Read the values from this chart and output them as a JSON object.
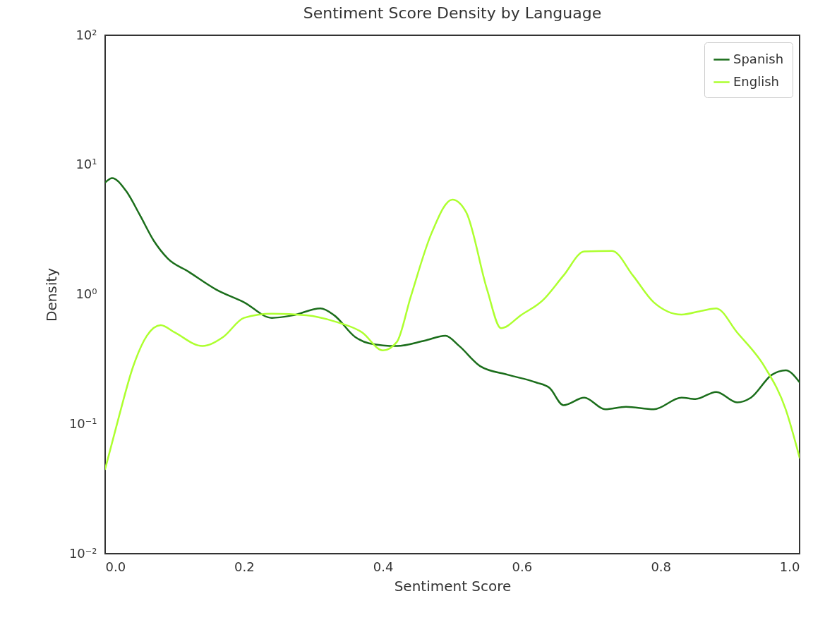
{
  "chart_data": {
    "type": "line",
    "title": "Sentiment Score Density by Language",
    "xlabel": "Sentiment Score",
    "ylabel": "Density",
    "log": "y",
    "grid": false,
    "legend": "top right",
    "marker": "none",
    "line_style": "solid",
    "xlim": [
      0,
      1
    ],
    "xticks": [
      {
        "value": 0,
        "label": "0.0"
      },
      0.2,
      0.4,
      0.6,
      0.8,
      {
        "value": 1,
        "label": "1.0"
      }
    ],
    "ylim": [
      0.01,
      100
    ],
    "yticks": [
      {
        "value": 0.01,
        "label": "10⁻²"
      },
      {
        "value": 0.1,
        "label": "10⁻¹"
      },
      {
        "value": 1,
        "label": "10⁰"
      },
      {
        "value": 10,
        "label": "10¹"
      },
      {
        "value": 100,
        "label": "10²"
      }
    ],
    "series": [
      {
        "name": "Spanish",
        "color": "#1b6e1b",
        "x": [
          0,
          0.01,
          0.03,
          0.05,
          0.07,
          0.09,
          0.12,
          0.16,
          0.2,
          0.24,
          0.27,
          0.31,
          0.33,
          0.36,
          0.38,
          0.42,
          0.46,
          0.49,
          0.51,
          0.54,
          0.58,
          0.62,
          0.64,
          0.66,
          0.69,
          0.72,
          0.75,
          0.79,
          0.83,
          0.85,
          0.88,
          0.91,
          0.93,
          0.96,
          0.98,
          1
        ],
        "values": [
          7.3,
          7.9,
          6.3,
          4.1,
          2.6,
          1.9,
          1.5,
          1.09,
          0.87,
          0.66,
          0.69,
          0.78,
          0.69,
          0.47,
          0.42,
          0.4,
          0.44,
          0.48,
          0.4,
          0.28,
          0.24,
          0.21,
          0.19,
          0.14,
          0.16,
          0.13,
          0.136,
          0.13,
          0.16,
          0.156,
          0.177,
          0.147,
          0.16,
          0.24,
          0.26,
          0.21
        ]
      },
      {
        "name": "English",
        "color": "#adff2f",
        "x": [
          0,
          0.02,
          0.04,
          0.06,
          0.08,
          0.1,
          0.14,
          0.17,
          0.2,
          0.24,
          0.29,
          0.33,
          0.37,
          0.4,
          0.42,
          0.44,
          0.47,
          0.5,
          0.52,
          0.55,
          0.57,
          0.6,
          0.63,
          0.66,
          0.69,
          0.73,
          0.76,
          0.79,
          0.83,
          0.86,
          0.88,
          0.91,
          0.95,
          0.98,
          1
        ],
        "values": [
          0.045,
          0.115,
          0.275,
          0.48,
          0.58,
          0.51,
          0.4,
          0.47,
          0.66,
          0.71,
          0.69,
          0.62,
          0.51,
          0.37,
          0.43,
          0.96,
          2.97,
          5.4,
          4.3,
          1.09,
          0.55,
          0.7,
          0.9,
          1.4,
          2.15,
          2.17,
          1.4,
          0.87,
          0.7,
          0.75,
          0.78,
          0.51,
          0.275,
          0.13,
          0.055
        ]
      }
    ]
  }
}
